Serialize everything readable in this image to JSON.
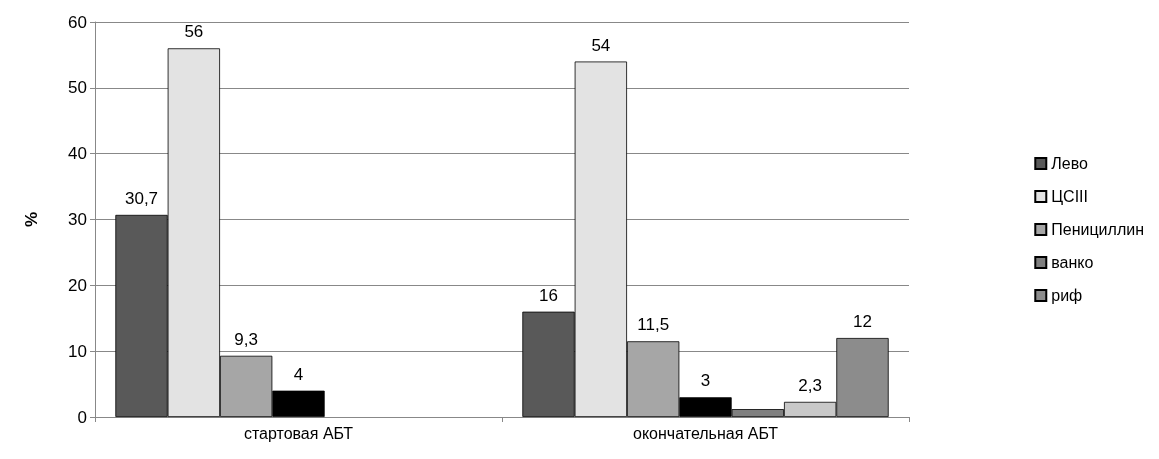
{
  "chart_data": {
    "type": "bar",
    "ylabel": "%",
    "categories": [
      "стартовая АБТ",
      "окончательная АБТ"
    ],
    "ylim": [
      0,
      60
    ],
    "yticks": [
      0,
      10,
      20,
      30,
      40,
      50,
      60
    ],
    "grid": "y",
    "legend": "right",
    "series": [
      {
        "name": "Лево",
        "color": "#595959",
        "values": [
          30.7,
          16
        ],
        "value_labels": [
          "30,7",
          "16"
        ]
      },
      {
        "name": "ЦСIII",
        "color": "#e3e3e3",
        "values": [
          56,
          54
        ],
        "value_labels": [
          "56",
          "54"
        ]
      },
      {
        "name": "Пенициллин",
        "color": "#a6a6a6",
        "values": [
          9.3,
          11.5
        ],
        "value_labels": [
          "9,3",
          "11,5"
        ]
      },
      {
        "color": "#000000",
        "values": [
          4,
          3
        ],
        "value_labels": [
          "4",
          "3"
        ]
      },
      {
        "name": "ванко",
        "color": "#7f7f7f",
        "values": [
          null,
          1.2
        ],
        "value_labels": [
          null,
          null
        ]
      },
      {
        "color": "#c8c8c8",
        "values": [
          null,
          2.3
        ],
        "value_labels": [
          null,
          "2,3"
        ]
      },
      {
        "name": "риф",
        "color": "#8c8c8c",
        "values": [
          null,
          12
        ],
        "value_labels": [
          null,
          "12"
        ]
      }
    ]
  }
}
